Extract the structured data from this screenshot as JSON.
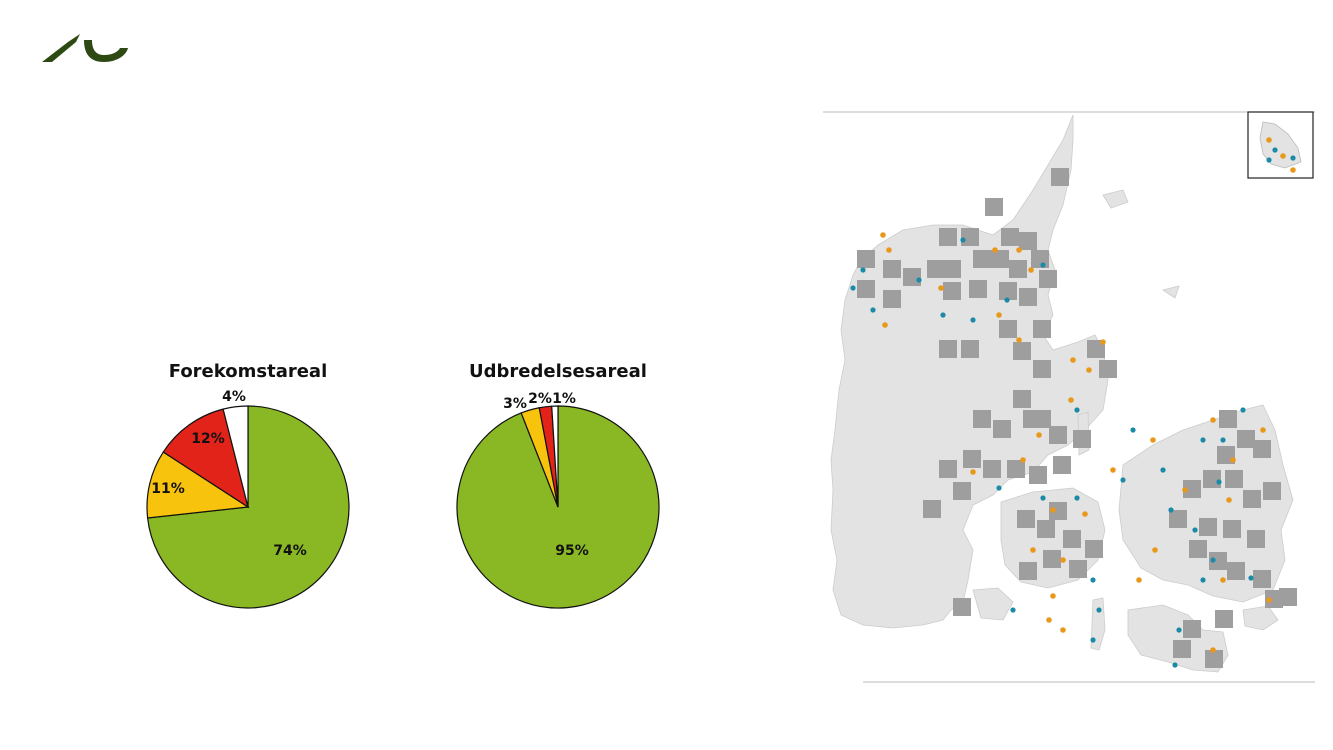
{
  "brand": {
    "logo_icon": "au-wave-logo-icon",
    "color": "#2e4a14"
  },
  "chart_data": [
    {
      "type": "pie",
      "title": "Forekomstareal",
      "slices": [
        {
          "label": "74%",
          "value": 74,
          "color": "#8ab825"
        },
        {
          "label": "11%",
          "value": 11,
          "color": "#f8c30c"
        },
        {
          "label": "12%",
          "value": 12,
          "color": "#e2231a"
        },
        {
          "label": "4%",
          "value": 4,
          "color": "#ffffff"
        }
      ]
    },
    {
      "type": "pie",
      "title": "Udbredelsesareal",
      "slices": [
        {
          "label": "95%",
          "value": 95,
          "color": "#8ab825"
        },
        {
          "label": "3%",
          "value": 3,
          "color": "#f8c30c"
        },
        {
          "label": "2%",
          "value": 2,
          "color": "#e2231a"
        },
        {
          "label": "1%",
          "value": 1,
          "color": "#ffffff"
        }
      ]
    }
  ],
  "map": {
    "icon": "denmark-distribution-map",
    "colors": {
      "land": "#e3e3e3",
      "grid": "#9e9e9e",
      "orange": "#e8991c",
      "teal": "#1a8aa8"
    }
  }
}
